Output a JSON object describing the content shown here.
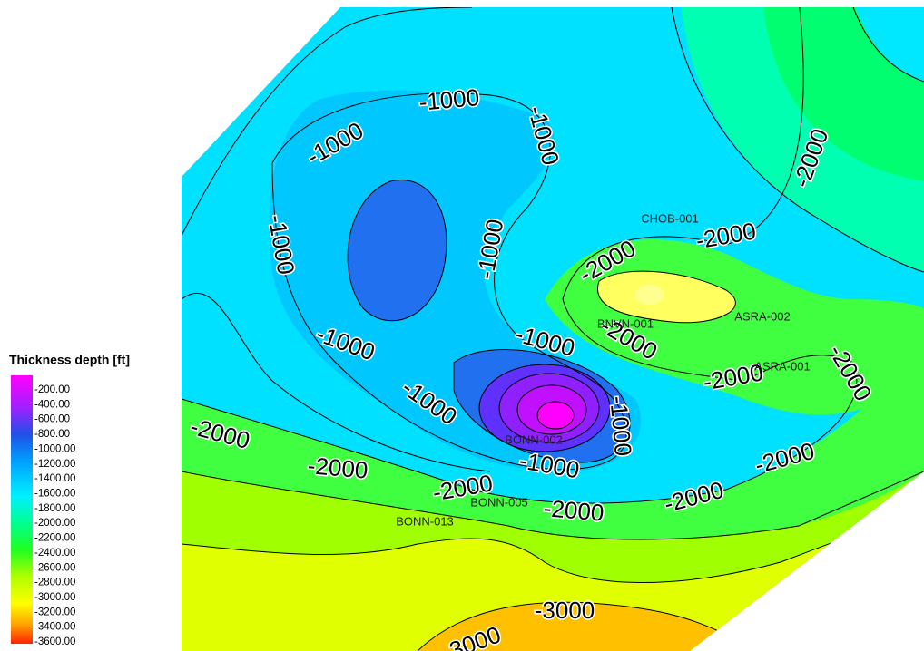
{
  "legend": {
    "title": "Thickness depth [ft]",
    "labels": [
      "-200.00",
      "-400.00",
      "-600.00",
      "-800.00",
      "-1000.00",
      "-1200.00",
      "-1400.00",
      "-1600.00",
      "-1800.00",
      "-2000.00",
      "-2200.00",
      "-2400.00",
      "-2600.00",
      "-2800.00",
      "-3000.00",
      "-3200.00",
      "-3400.00",
      "-3600.00"
    ]
  },
  "wells": [
    "CHOB-001",
    "ASRA-002",
    "BNVN-001",
    "ASRA-001",
    "BONN-002",
    "BONN-005",
    "BONN-013"
  ],
  "contour_labels": [
    "-1000",
    "-1000",
    "-1000",
    "-1000",
    "-1000",
    "-1000",
    "-1000",
    "-1000",
    "-1000",
    "-1000",
    "-2000",
    "-2000",
    "-2000",
    "-2000",
    "-2000",
    "-2000",
    "-2000",
    "-2000",
    "-2000",
    "-2000",
    "-2000",
    "-2000",
    "-3000",
    "-3000"
  ]
}
